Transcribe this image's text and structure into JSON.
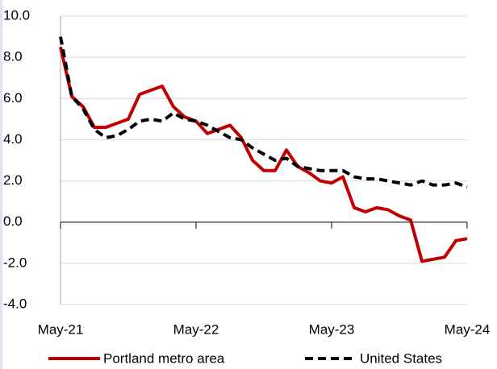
{
  "chart_data": {
    "type": "line",
    "categories": [
      "May-21",
      null,
      null,
      null,
      null,
      null,
      null,
      null,
      null,
      null,
      null,
      null,
      "May-22",
      null,
      null,
      null,
      null,
      null,
      null,
      null,
      null,
      null,
      null,
      null,
      "May-23",
      null,
      null,
      null,
      null,
      null,
      null,
      null,
      null,
      null,
      null,
      null,
      "May-24"
    ],
    "series": [
      {
        "name": "Portland metro area",
        "color": "#c00000",
        "dash": false,
        "values": [
          8.5,
          6.1,
          5.6,
          4.6,
          4.6,
          4.8,
          5.0,
          6.2,
          6.4,
          6.6,
          5.6,
          5.1,
          4.9,
          4.3,
          4.5,
          4.7,
          4.1,
          3.0,
          2.5,
          2.5,
          3.5,
          2.7,
          2.4,
          2.0,
          1.9,
          2.2,
          0.7,
          0.5,
          0.7,
          0.6,
          0.3,
          0.1,
          -1.9,
          -1.8,
          -1.7,
          -0.9,
          -0.8
        ]
      },
      {
        "name": "United States",
        "color": "#000000",
        "dash": true,
        "values": [
          9.0,
          6.1,
          5.5,
          4.5,
          4.1,
          4.2,
          4.5,
          4.9,
          5.0,
          4.9,
          5.3,
          5.0,
          4.9,
          4.7,
          4.4,
          4.1,
          4.0,
          3.6,
          3.3,
          3.0,
          3.1,
          2.7,
          2.6,
          2.5,
          2.5,
          2.5,
          2.2,
          2.1,
          2.1,
          2.0,
          1.9,
          1.8,
          2.0,
          1.8,
          1.8,
          1.9,
          1.7
        ]
      }
    ],
    "ylim": [
      -4,
      10
    ],
    "yticks": [
      {
        "value": -4,
        "label": "-4.0"
      },
      {
        "value": -2,
        "label": "-2.0"
      },
      {
        "value": 0,
        "label": "0.0"
      },
      {
        "value": 2,
        "label": "2.0"
      },
      {
        "value": 4,
        "label": "4.0"
      },
      {
        "value": 6,
        "label": "6.0"
      },
      {
        "value": 8,
        "label": "8.0"
      },
      {
        "value": 10,
        "label": "10.0"
      }
    ],
    "grid": true
  }
}
